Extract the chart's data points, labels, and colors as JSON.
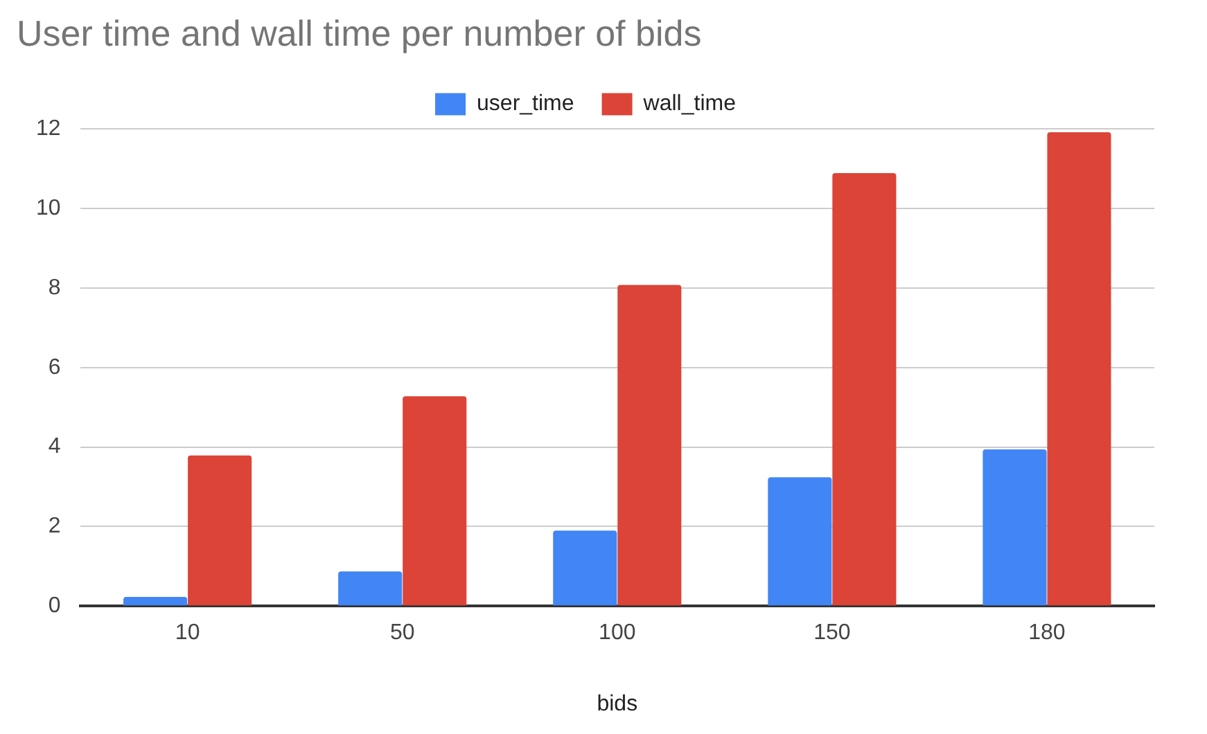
{
  "chart_data": {
    "type": "bar",
    "title": "User time and wall time per number of bids",
    "xlabel": "bids",
    "categories": [
      "10",
      "50",
      "100",
      "150",
      "180"
    ],
    "series": [
      {
        "name": "user_time",
        "color": "#4285f4",
        "values": [
          0.23,
          0.87,
          1.9,
          3.24,
          3.94
        ]
      },
      {
        "name": "wall_time",
        "color": "#db4437",
        "values": [
          3.79,
          5.28,
          8.08,
          10.89,
          11.92
        ]
      }
    ],
    "ylim": [
      0,
      12
    ],
    "yticks": [
      0,
      2,
      4,
      6,
      8,
      10,
      12
    ],
    "grid": "y",
    "legend": "top"
  }
}
